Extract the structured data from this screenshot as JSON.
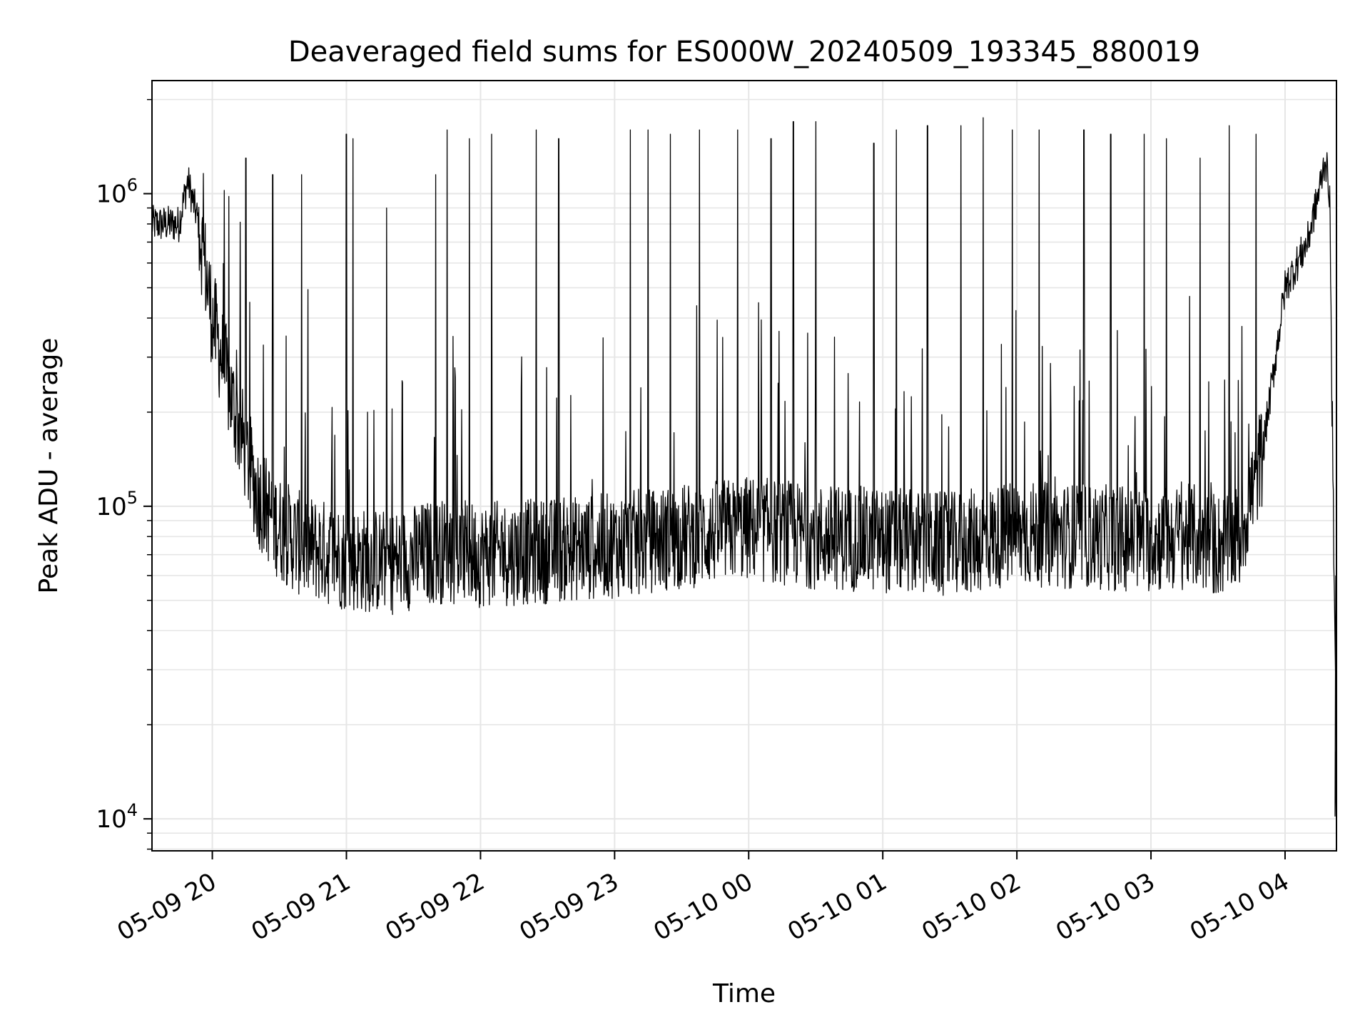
{
  "chart_data": {
    "type": "line",
    "title": "Deaveraged field sums for ES000W_20240509_193345_880019",
    "xlabel": "Time",
    "ylabel": "Peak ADU - average",
    "xscale": "time",
    "yscale": "log",
    "xlim": [
      "2024-05-09 19:33",
      "2024-05-10 04:23"
    ],
    "ylim": [
      7900,
      2300000
    ],
    "grid": true,
    "line_color": "#000000",
    "grid_color": "#e6e6e6",
    "x_ticks": [
      "05-09 20",
      "05-09 21",
      "05-09 22",
      "05-09 23",
      "05-10 00",
      "05-10 01",
      "05-10 02",
      "05-10 03",
      "05-10 04"
    ],
    "y_ticks": [
      {
        "value": 10000,
        "base": "10",
        "exp": "4"
      },
      {
        "value": 100000,
        "base": "10",
        "exp": "5"
      },
      {
        "value": 1000000,
        "base": "10",
        "exp": "6"
      }
    ],
    "series": [
      {
        "x": [
          "2024-05-09 19:33",
          "2024-05-09 19:45",
          "2024-05-09 19:49",
          "2024-05-09 19:54",
          "2024-05-09 20:00",
          "2024-05-09 20:10",
          "2024-05-09 20:15",
          "2024-05-09 20:20",
          "2024-05-09 20:30",
          "2024-05-09 20:40",
          "2024-05-09 21:00",
          "2024-05-09 21:20",
          "2024-05-09 21:40",
          "2024-05-09 22:00",
          "2024-05-09 22:30",
          "2024-05-09 23:00",
          "2024-05-09 23:30",
          "2024-05-10 00:00",
          "2024-05-10 00:30",
          "2024-05-10 01:00",
          "2024-05-10 01:30",
          "2024-05-10 02:00",
          "2024-05-10 02:30",
          "2024-05-10 03:00",
          "2024-05-10 03:20",
          "2024-05-10 03:30",
          "2024-05-10 03:40",
          "2024-05-10 03:50",
          "2024-05-10 04:00",
          "2024-05-10 04:10",
          "2024-05-10 04:15",
          "2024-05-10 04:18",
          "2024-05-10 04:20",
          "2024-05-10 04:22"
        ],
        "y": [
          800000,
          800000,
          1100000,
          800000,
          400000,
          200000,
          150000,
          110000,
          85000,
          75000,
          68000,
          66000,
          72000,
          70000,
          72000,
          75000,
          80000,
          85000,
          80000,
          78000,
          75000,
          82000,
          80000,
          78000,
          80000,
          75000,
          80000,
          150000,
          500000,
          700000,
          1000000,
          1300000,
          1000000,
          40000
        ],
        "spikes": [
          {
            "x": "2024-05-09 20:15",
            "y": 1300000
          },
          {
            "x": "2024-05-09 20:27",
            "y": 1150000
          },
          {
            "x": "2024-05-09 20:40",
            "y": 1150000
          },
          {
            "x": "2024-05-09 21:00",
            "y": 1550000
          },
          {
            "x": "2024-05-09 21:03",
            "y": 1500000
          },
          {
            "x": "2024-05-09 21:18",
            "y": 900000
          },
          {
            "x": "2024-05-09 21:40",
            "y": 1150000
          },
          {
            "x": "2024-05-09 21:45",
            "y": 1600000
          },
          {
            "x": "2024-05-09 21:55",
            "y": 1500000
          },
          {
            "x": "2024-05-09 22:05",
            "y": 1550000
          },
          {
            "x": "2024-05-09 22:25",
            "y": 1600000
          },
          {
            "x": "2024-05-09 22:35",
            "y": 1500000
          },
          {
            "x": "2024-05-09 23:07",
            "y": 1600000
          },
          {
            "x": "2024-05-09 23:15",
            "y": 1600000
          },
          {
            "x": "2024-05-09 23:25",
            "y": 1550000
          },
          {
            "x": "2024-05-09 23:38",
            "y": 1600000
          },
          {
            "x": "2024-05-09 23:55",
            "y": 1600000
          },
          {
            "x": "2024-05-10 00:10",
            "y": 1500000
          },
          {
            "x": "2024-05-10 00:20",
            "y": 1700000
          },
          {
            "x": "2024-05-10 00:30",
            "y": 1700000
          },
          {
            "x": "2024-05-10 00:56",
            "y": 1450000
          },
          {
            "x": "2024-05-10 01:06",
            "y": 1600000
          },
          {
            "x": "2024-05-10 01:20",
            "y": 1650000
          },
          {
            "x": "2024-05-10 01:35",
            "y": 1650000
          },
          {
            "x": "2024-05-10 01:45",
            "y": 1750000
          },
          {
            "x": "2024-05-10 01:58",
            "y": 1600000
          },
          {
            "x": "2024-05-10 02:10",
            "y": 1600000
          },
          {
            "x": "2024-05-10 02:30",
            "y": 1600000
          },
          {
            "x": "2024-05-10 02:42",
            "y": 1550000
          },
          {
            "x": "2024-05-10 02:57",
            "y": 1550000
          },
          {
            "x": "2024-05-10 03:07",
            "y": 1500000
          },
          {
            "x": "2024-05-10 03:22",
            "y": 1300000
          },
          {
            "x": "2024-05-10 03:35",
            "y": 1650000
          },
          {
            "x": "2024-05-10 03:47",
            "y": 1550000
          }
        ]
      }
    ]
  }
}
